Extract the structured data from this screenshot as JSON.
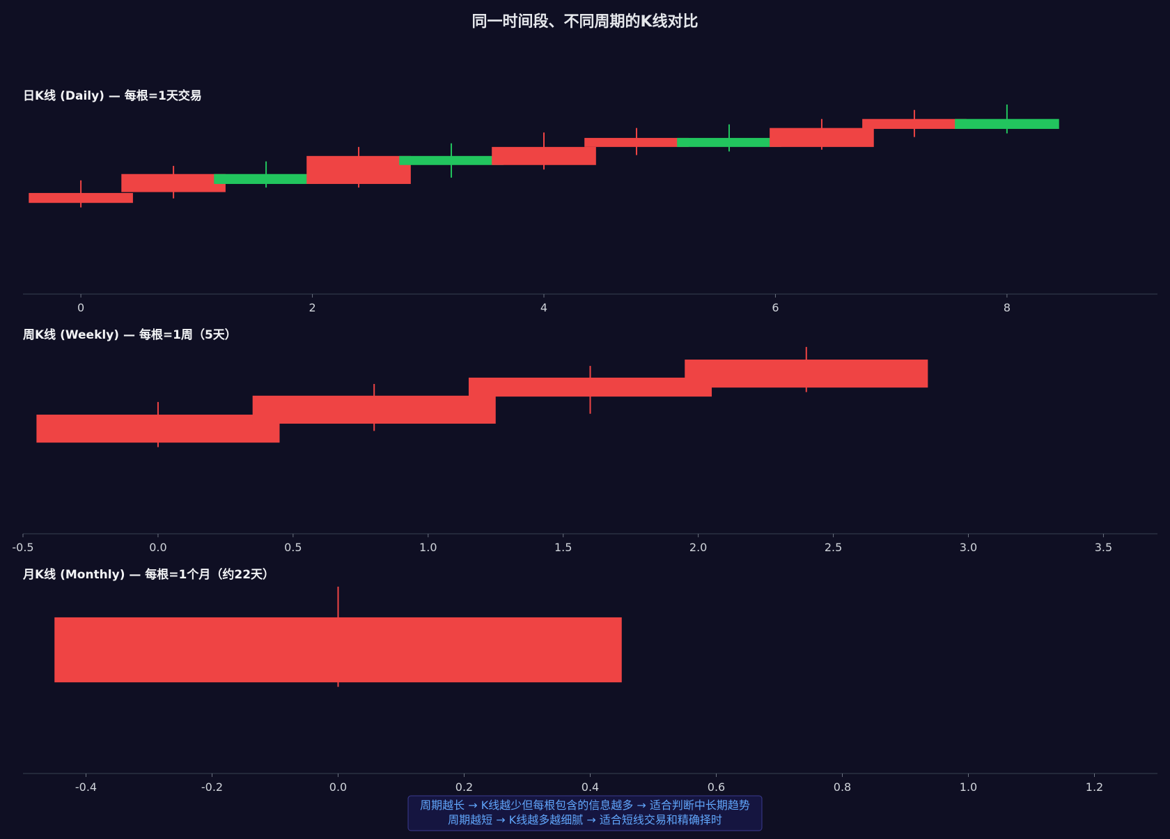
{
  "title": "同一时间段、不同周期的K线对比",
  "colors": {
    "up": "#ef4444",
    "down": "#22c55e",
    "background": "#0f0f23",
    "axis": "#374151",
    "note_text": "#60a5fa",
    "note_bg": "#151540",
    "note_border": "#3b3b8f"
  },
  "chart_data": [
    {
      "type": "candlestick",
      "title": "日K线 (Daily) — 每根=1天交易",
      "xlim": [
        -0.5,
        9.3
      ],
      "ylim": [
        90,
        111
      ],
      "xticks": [
        0,
        2,
        4,
        6,
        8
      ],
      "candles": [
        {
          "x": 0,
          "open": 100.1,
          "close": 101.2,
          "high": 102.6,
          "low": 99.6,
          "dir": "up"
        },
        {
          "x": 0.8,
          "open": 101.3,
          "close": 103.3,
          "high": 104.2,
          "low": 100.6,
          "dir": "up"
        },
        {
          "x": 1.6,
          "open": 103.3,
          "close": 102.2,
          "high": 104.7,
          "low": 101.8,
          "dir": "down"
        },
        {
          "x": 2.4,
          "open": 102.2,
          "close": 105.3,
          "high": 106.3,
          "low": 101.8,
          "dir": "up"
        },
        {
          "x": 3.2,
          "open": 105.3,
          "close": 104.3,
          "high": 106.7,
          "low": 102.9,
          "dir": "down"
        },
        {
          "x": 4.0,
          "open": 104.3,
          "close": 106.3,
          "high": 107.9,
          "low": 103.8,
          "dir": "up"
        },
        {
          "x": 4.8,
          "open": 106.3,
          "close": 107.3,
          "high": 108.4,
          "low": 105.4,
          "dir": "up"
        },
        {
          "x": 5.6,
          "open": 107.3,
          "close": 106.3,
          "high": 108.8,
          "low": 105.8,
          "dir": "down"
        },
        {
          "x": 6.4,
          "open": 106.3,
          "close": 108.4,
          "high": 109.4,
          "low": 106.0,
          "dir": "up"
        },
        {
          "x": 7.2,
          "open": 108.3,
          "close": 109.4,
          "high": 110.4,
          "low": 107.4,
          "dir": "up"
        },
        {
          "x": 8.0,
          "open": 109.4,
          "close": 108.3,
          "high": 111.0,
          "low": 107.8,
          "dir": "down"
        }
      ],
      "body_width": 0.45
    },
    {
      "type": "candlestick",
      "title": "周K线 (Weekly) — 每根=1周（5天）",
      "xlim": [
        -0.5,
        3.7
      ],
      "ylim": [
        90,
        111
      ],
      "xticks": [
        -0.5,
        0.0,
        0.5,
        1.0,
        1.5,
        2.0,
        2.5,
        3.0,
        3.5
      ],
      "tick_labels": [
        "-0.5",
        "0.0",
        "0.5",
        "1.0",
        "1.5",
        "2.0",
        "2.5",
        "3.0",
        "3.5"
      ],
      "candles": [
        {
          "x": 0.0,
          "open": 100.1,
          "close": 103.2,
          "high": 104.6,
          "low": 99.6,
          "dir": "up"
        },
        {
          "x": 0.8,
          "open": 102.2,
          "close": 105.3,
          "high": 106.6,
          "low": 101.4,
          "dir": "up"
        },
        {
          "x": 1.6,
          "open": 105.2,
          "close": 107.3,
          "high": 108.6,
          "low": 103.3,
          "dir": "up"
        },
        {
          "x": 2.4,
          "open": 106.2,
          "close": 109.3,
          "high": 110.7,
          "low": 105.7,
          "dir": "up"
        }
      ],
      "body_width": 0.45
    },
    {
      "type": "candlestick",
      "title": "月K线 (Monthly) — 每根=1个月（约22天）",
      "xlim": [
        -0.5,
        1.3
      ],
      "ylim": [
        90,
        111
      ],
      "xticks": [
        -0.4,
        -0.2,
        0.0,
        0.2,
        0.4,
        0.6,
        0.8,
        1.0,
        1.2
      ],
      "tick_labels": [
        "-0.4",
        "-0.2",
        "0.0",
        "0.2",
        "0.4",
        "0.6",
        "0.8",
        "1.0",
        "1.2"
      ],
      "candles": [
        {
          "x": 0.0,
          "open": 100.1,
          "close": 107.3,
          "high": 110.7,
          "low": 99.6,
          "dir": "up"
        }
      ],
      "body_width": 0.45
    }
  ],
  "note": {
    "line1": "周期越长 → K线越少但每根包含的信息越多 → 适合判断中长期趋势",
    "line2": "周期越短 → K线越多越细腻 → 适合短线交易和精确择时"
  }
}
